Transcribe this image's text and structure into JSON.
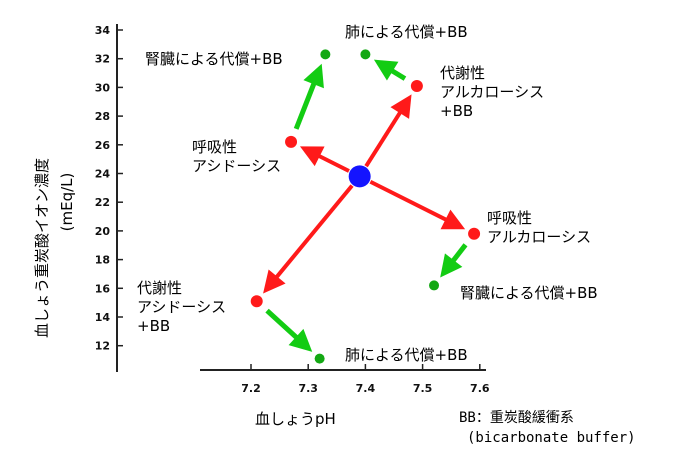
{
  "chart_data": {
    "type": "scatter",
    "xlabel": "血しょうpH",
    "ylabel": "血しょう重炭酸イオン濃度",
    "ylabel_unit": "(mEq/L)",
    "xlim": [
      7.1,
      7.6
    ],
    "ylim": [
      10,
      34
    ],
    "x_ticks": [
      "7.2",
      "7.3",
      "7.4",
      "7.5",
      "7.6"
    ],
    "y_ticks": [
      "12",
      "14",
      "16",
      "18",
      "20",
      "22",
      "24",
      "26",
      "28",
      "30",
      "32",
      "34"
    ],
    "points": [
      {
        "id": "normal",
        "x": 7.39,
        "y": 23.8,
        "label": "",
        "color": "#1414ff"
      },
      {
        "id": "resp_acidosis",
        "x": 7.27,
        "y": 26.2,
        "label": "呼吸性\nアシドーシス",
        "color": "#ff1a1a"
      },
      {
        "id": "resp_acidosis_comp",
        "x": 7.33,
        "y": 32.3,
        "label": "腎臓による代償+BB",
        "color": "#13a813"
      },
      {
        "id": "metab_alkalosis",
        "x": 7.49,
        "y": 30.1,
        "label": "代謝性\nアルカローシス\n+BB",
        "color": "#ff1a1a"
      },
      {
        "id": "metab_alkalosis_comp",
        "x": 7.4,
        "y": 32.3,
        "label": "肺による代償+BB",
        "color": "#13a813"
      },
      {
        "id": "resp_alkalosis",
        "x": 7.59,
        "y": 19.8,
        "label": "呼吸性\nアルカローシス",
        "color": "#ff1a1a"
      },
      {
        "id": "resp_alkalosis_comp",
        "x": 7.52,
        "y": 16.2,
        "label": "腎臓による代償+BB",
        "color": "#13a813"
      },
      {
        "id": "metab_acidosis",
        "x": 7.21,
        "y": 15.1,
        "label": "代謝性\nアシドーシス\n+BB",
        "color": "#ff1a1a"
      },
      {
        "id": "metab_acidosis_comp",
        "x": 7.32,
        "y": 11.1,
        "label": "肺による代償+BB",
        "color": "#13a813"
      }
    ],
    "arrows": [
      {
        "from": [
          7.39,
          23.8
        ],
        "to": [
          7.27,
          26.2
        ],
        "color": "#ff1a1a"
      },
      {
        "from": [
          7.39,
          23.8
        ],
        "to": [
          7.49,
          30.1
        ],
        "color": "#ff1a1a"
      },
      {
        "from": [
          7.39,
          23.8
        ],
        "to": [
          7.59,
          19.8
        ],
        "color": "#ff1a1a"
      },
      {
        "from": [
          7.39,
          23.8
        ],
        "to": [
          7.21,
          15.1
        ],
        "color": "#ff1a1a"
      },
      {
        "from": [
          7.27,
          26.2
        ],
        "to": [
          7.33,
          32.3
        ],
        "color": "#13cc13"
      },
      {
        "from": [
          7.49,
          30.1
        ],
        "to": [
          7.4,
          32.3
        ],
        "color": "#13cc13"
      },
      {
        "from": [
          7.59,
          19.8
        ],
        "to": [
          7.52,
          16.2
        ],
        "color": "#13cc13"
      },
      {
        "from": [
          7.21,
          15.1
        ],
        "to": [
          7.32,
          11.1
        ],
        "color": "#13cc13"
      }
    ],
    "legend_note": [
      "BB：重炭酸緩衝系",
      "(bicarbonate buffer)"
    ]
  }
}
